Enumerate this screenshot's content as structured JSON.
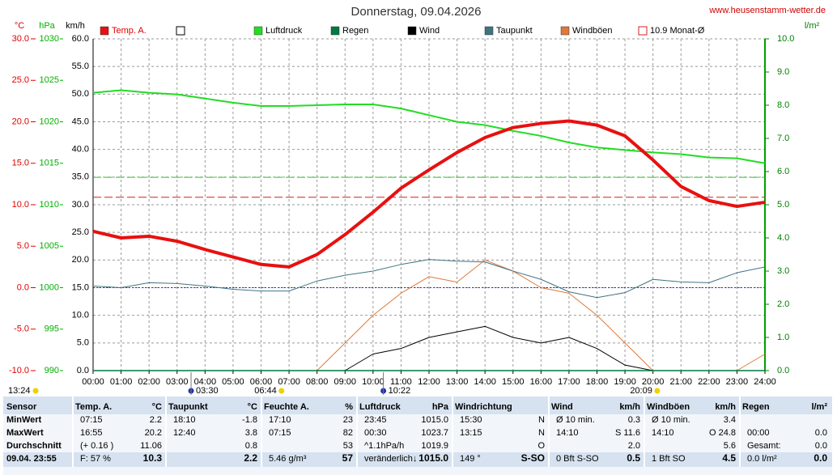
{
  "header": {
    "title": "Donnerstag, 09.04.2026",
    "site": "www.heusenstamm-wetter.de"
  },
  "chart_data": {
    "type": "line",
    "ylabel": "°C",
    "y2label": "hPa",
    "y3label": "km/h",
    "y4label": "l/m²",
    "xlim": [
      0,
      24
    ],
    "xticks": [
      {
        "value": 0,
        "label": "00:00"
      },
      {
        "value": 1,
        "label": "01:00"
      },
      {
        "value": 2,
        "label": "02:00"
      },
      {
        "value": 3,
        "label": "03:00"
      },
      {
        "value": 4,
        "label": "04:00"
      },
      {
        "value": 5,
        "label": "05:00"
      },
      {
        "value": 6,
        "label": "06:00"
      },
      {
        "value": 7,
        "label": "07:00"
      },
      {
        "value": 8,
        "label": "08:00"
      },
      {
        "value": 9,
        "label": "09:00"
      },
      {
        "value": 10,
        "label": "10:00"
      },
      {
        "value": 11,
        "label": "11:00"
      },
      {
        "value": 12,
        "label": "12:00"
      },
      {
        "value": 13,
        "label": "13:00"
      },
      {
        "value": 14,
        "label": "14:00"
      },
      {
        "value": 15,
        "label": "15:00"
      },
      {
        "value": 16,
        "label": "16:00"
      },
      {
        "value": 17,
        "label": "17:00"
      },
      {
        "value": 18,
        "label": "18:00"
      },
      {
        "value": 19,
        "label": "19:00"
      },
      {
        "value": 20,
        "label": "20:00"
      },
      {
        "value": 21,
        "label": "21:00"
      },
      {
        "value": 22,
        "label": "22:00"
      },
      {
        "value": 23,
        "label": "23:00"
      },
      {
        "value": 24,
        "label": "24:00"
      }
    ],
    "ylim": [
      -10,
      30
    ],
    "yticks": [
      {
        "value": -10,
        "label": "-10.0"
      },
      {
        "value": -5,
        "label": "-5.0"
      },
      {
        "value": 0,
        "label": "0.0"
      },
      {
        "value": 5,
        "label": "5.0"
      },
      {
        "value": 10,
        "label": "10.0"
      },
      {
        "value": 15,
        "label": "15.0"
      },
      {
        "value": 20,
        "label": "20.0"
      },
      {
        "value": 25,
        "label": "25.0"
      },
      {
        "value": 30,
        "label": "30.0"
      }
    ],
    "y2lim": [
      990,
      1030
    ],
    "y2ticks": [
      990,
      995,
      1000,
      1005,
      1010,
      1015,
      1020,
      1025,
      1030
    ],
    "y3lim": [
      0,
      60
    ],
    "y3ticks": [
      {
        "value": 0,
        "label": "0.0"
      },
      {
        "value": 5,
        "label": "5.0"
      },
      {
        "value": 10,
        "label": "10.0"
      },
      {
        "value": 15,
        "label": "15.0"
      },
      {
        "value": 20,
        "label": "20.0"
      },
      {
        "value": 25,
        "label": "25.0"
      },
      {
        "value": 30,
        "label": "30.0"
      },
      {
        "value": 35,
        "label": "35.0"
      },
      {
        "value": 40,
        "label": "40.0"
      },
      {
        "value": 45,
        "label": "45.0"
      },
      {
        "value": 50,
        "label": "50.0"
      },
      {
        "value": 55,
        "label": "55.0"
      },
      {
        "value": 60,
        "label": "60.0"
      }
    ],
    "y4lim": [
      0,
      10
    ],
    "y4ticks": [
      {
        "value": 0,
        "label": "0.0"
      },
      {
        "value": 1,
        "label": "1.0"
      },
      {
        "value": 2,
        "label": "2.0"
      },
      {
        "value": 3,
        "label": "3.0"
      },
      {
        "value": 4,
        "label": "4.0"
      },
      {
        "value": 5,
        "label": "5.0"
      },
      {
        "value": 6,
        "label": "6.0"
      },
      {
        "value": 7,
        "label": "7.0"
      },
      {
        "value": 8,
        "label": "8.0"
      },
      {
        "value": 9,
        "label": "9.0"
      },
      {
        "value": 10,
        "label": "10.0"
      }
    ],
    "grid": true,
    "x": [
      0,
      1,
      2,
      3,
      4,
      5,
      6,
      7,
      8,
      9,
      10,
      11,
      12,
      13,
      14,
      15,
      16,
      17,
      18,
      19,
      20,
      21,
      22,
      23,
      24
    ],
    "series": [
      {
        "name": "Windböen",
        "color": "#e07838",
        "axis": "y3",
        "width": 1,
        "values": [
          0,
          0,
          0,
          0,
          0,
          0,
          0,
          0,
          0,
          5,
          10,
          14,
          17,
          16,
          20,
          18,
          15,
          14,
          10,
          5,
          0,
          0,
          0,
          0,
          3
        ]
      },
      {
        "name": "Wind",
        "color": "#000000",
        "axis": "y3",
        "width": 1,
        "values": [
          0,
          0,
          0,
          0,
          0,
          0,
          0,
          0,
          0,
          0,
          3,
          4,
          6,
          7,
          8,
          6,
          5,
          6,
          4,
          1,
          0,
          0,
          0,
          0,
          0
        ]
      },
      {
        "name": "Regen",
        "color": "#007a40",
        "axis": "y4",
        "width": 1.5,
        "values": [
          0,
          0,
          0,
          0,
          0,
          0,
          0,
          0,
          0,
          0,
          0,
          0,
          0,
          0,
          0,
          0,
          0,
          0,
          0,
          0,
          0,
          0,
          0,
          0,
          0
        ]
      },
      {
        "name": "Taupunkt",
        "color": "#3f7482",
        "width": 1,
        "values": [
          0.2,
          0.0,
          0.6,
          0.5,
          0.2,
          -0.2,
          -0.4,
          -0.4,
          0.8,
          1.5,
          2.0,
          2.8,
          3.4,
          3.2,
          3.1,
          2.0,
          1.0,
          -0.5,
          -1.2,
          -0.6,
          1.0,
          0.7,
          0.6,
          1.8,
          2.5
        ]
      },
      {
        "name": "Luftdruck",
        "color": "#22dd22",
        "axis": "y2",
        "width": 2,
        "values": [
          1023.5,
          1023.8,
          1023.5,
          1023.3,
          1022.8,
          1022.3,
          1021.9,
          1021.9,
          1022.0,
          1022.1,
          1022.1,
          1021.6,
          1020.8,
          1020.0,
          1019.6,
          1018.9,
          1018.3,
          1017.5,
          1016.9,
          1016.6,
          1016.3,
          1016.1,
          1015.7,
          1015.6,
          1015.0
        ]
      },
      {
        "name": "Temp. A.",
        "color": "#e81010",
        "width": 4,
        "values": [
          6.8,
          6.0,
          6.2,
          5.6,
          4.6,
          3.7,
          2.8,
          2.5,
          4.0,
          6.4,
          9.1,
          12.0,
          14.2,
          16.3,
          18.1,
          19.3,
          19.8,
          20.1,
          19.6,
          18.3,
          15.4,
          12.2,
          10.5,
          9.8,
          10.3
        ]
      }
    ],
    "legend_order": [
      5,
      4,
      2,
      1,
      3,
      0
    ],
    "monthly_avg": 10.9,
    "monthly_avg_label": "10.9 Monat-Ø",
    "pressure_ref": 1013.3,
    "annotations": [
      {
        "label": "13:24",
        "x": null,
        "icon": "sun"
      },
      {
        "label": "03:30",
        "x": 3.5,
        "icon": "moon"
      },
      {
        "label": "06:44",
        "x": 6.73,
        "icon": "sun"
      },
      {
        "label": "10:22",
        "x": 10.37,
        "icon": "moon"
      },
      {
        "label": "20:09",
        "x": 20.15,
        "icon": "sun"
      }
    ]
  },
  "table": {
    "columns": [
      {
        "title": "Sensor",
        "rows": [
          [
            "MinWert",
            null
          ],
          [
            "MaxWert",
            null
          ],
          [
            "Durchschnitt",
            null
          ],
          [
            "09.04. 23:55",
            null
          ]
        ]
      },
      {
        "title": "Temp. A.",
        "unit": "°C",
        "rows": [
          [
            "07:15",
            "2.2"
          ],
          [
            "16:55",
            "20.2"
          ],
          [
            "(+ 0.16 )",
            "11.06"
          ],
          [
            "F: 57 %",
            "10.3"
          ]
        ]
      },
      {
        "title": "Taupunkt",
        "unit": "°C",
        "rows": [
          [
            "18:10",
            "-1.8"
          ],
          [
            "12:40",
            "3.8"
          ],
          [
            null,
            "0.8"
          ],
          [
            null,
            "2.2"
          ]
        ]
      },
      {
        "title": "Feuchte A.",
        "unit": "%",
        "rows": [
          [
            "17:10",
            "23"
          ],
          [
            "07:15",
            "82"
          ],
          [
            null,
            "53"
          ],
          [
            "5.46 g/m³",
            "57"
          ]
        ]
      },
      {
        "title": "Luftdruck",
        "unit": "hPa",
        "rows": [
          [
            "23:45",
            "1015.0"
          ],
          [
            "00:30",
            "1023.7"
          ],
          [
            "^1.1hPa/h",
            "1019.9"
          ],
          [
            "veränderlich↓",
            "1015.0"
          ]
        ]
      },
      {
        "title": "Windrichtung",
        "rows": [
          [
            "15:30",
            "N"
          ],
          [
            "13:15",
            "N"
          ],
          [
            null,
            "O"
          ],
          [
            "149 °",
            "S-SO"
          ]
        ]
      },
      {
        "title": "Wind",
        "unit": "km/h",
        "rows": [
          [
            "Ø 10 min.",
            "0.3"
          ],
          [
            "14:10",
            "S 11.6"
          ],
          [
            null,
            "2.0"
          ],
          [
            "0 Bft S-SO",
            "0.5"
          ]
        ]
      },
      {
        "title": "Windböen",
        "unit": "km/h",
        "rows": [
          [
            "Ø 10 min.",
            "3.4"
          ],
          [
            "14:10",
            "O 24.8"
          ],
          [
            null,
            "5.6"
          ],
          [
            "1 Bft SO",
            "4.5"
          ]
        ]
      },
      {
        "title": "Regen",
        "unit": "l/m²",
        "rows": [
          [
            null,
            null
          ],
          [
            "00:00",
            "0.0"
          ],
          [
            "Gesamt:",
            "0.0"
          ],
          [
            "0.0 l/m²",
            "0.0"
          ]
        ]
      }
    ]
  }
}
